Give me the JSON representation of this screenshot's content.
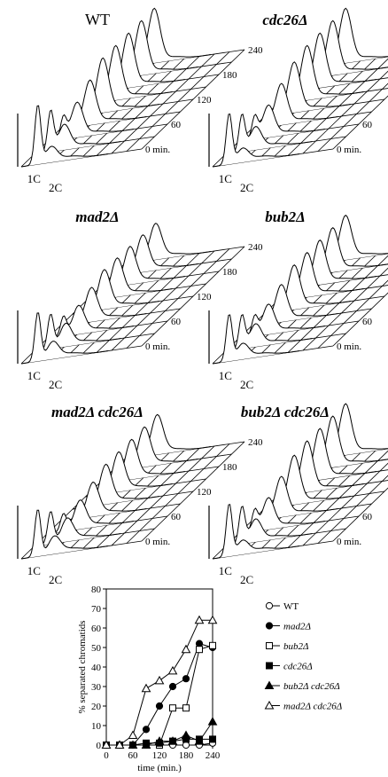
{
  "panels": [
    {
      "title": "WT",
      "italic": false,
      "time_ticks": [
        "240",
        "180",
        "120",
        "60",
        "0 min."
      ],
      "dna_labels": [
        "1C",
        "2C"
      ]
    },
    {
      "title": "cdc26Δ",
      "italic": true,
      "time_ticks": [
        "240",
        "180",
        "120",
        "60",
        "0 min."
      ],
      "dna_labels": [
        "1C",
        "2C"
      ]
    },
    {
      "title": "mad2Δ",
      "italic": true,
      "time_ticks": [
        "240",
        "180",
        "120",
        "60",
        "0 min."
      ],
      "dna_labels": [
        "1C",
        "2C"
      ]
    },
    {
      "title": "bub2Δ",
      "italic": true,
      "time_ticks": [
        "240",
        "180",
        "120",
        "60",
        "0 min."
      ],
      "dna_labels": [
        "1C",
        "2C"
      ]
    },
    {
      "title": "mad2Δ cdc26Δ",
      "italic": true,
      "time_ticks": [
        "240",
        "180",
        "120",
        "60",
        "0 min."
      ],
      "dna_labels": [
        "1C",
        "2C"
      ]
    },
    {
      "title": "bub2Δ cdc26Δ",
      "italic": true,
      "time_ticks": [
        "240",
        "180",
        "120",
        "60",
        "0 min."
      ],
      "dna_labels": [
        "1C",
        "2C"
      ]
    }
  ],
  "chart_data": {
    "type": "line",
    "xlabel": "time (min.)",
    "ylabel": "% separated chromatids",
    "xlim": [
      0,
      240
    ],
    "ylim": [
      0,
      80
    ],
    "xticks": [
      0,
      60,
      120,
      180,
      240
    ],
    "yticks": [
      0,
      10,
      20,
      30,
      40,
      50,
      60,
      70,
      80
    ],
    "legend_position": "right",
    "x": [
      0,
      30,
      60,
      90,
      120,
      150,
      180,
      210,
      240
    ],
    "series": [
      {
        "name": "WT",
        "marker": "open-circle",
        "values": [
          0,
          0,
          0,
          0,
          0,
          0,
          0,
          0,
          1
        ]
      },
      {
        "name": "mad2Δ",
        "marker": "filled-circle",
        "values": [
          0,
          0,
          0,
          8,
          20,
          30,
          34,
          52,
          50
        ]
      },
      {
        "name": "bub2Δ",
        "marker": "open-square",
        "values": [
          0,
          0,
          0,
          0,
          0,
          19,
          19,
          49,
          51
        ]
      },
      {
        "name": "cdc26Δ",
        "marker": "filled-square",
        "values": [
          0,
          0,
          0,
          1,
          1,
          2,
          3,
          3,
          3
        ]
      },
      {
        "name": "bub2Δ cdc26Δ",
        "marker": "filled-triangle",
        "values": [
          0,
          0,
          0,
          0,
          2,
          2,
          5,
          2,
          12
        ]
      },
      {
        "name": "mad2Δ cdc26Δ",
        "marker": "open-triangle",
        "values": [
          0,
          0,
          5,
          29,
          33,
          38,
          49,
          64,
          64
        ]
      }
    ]
  }
}
